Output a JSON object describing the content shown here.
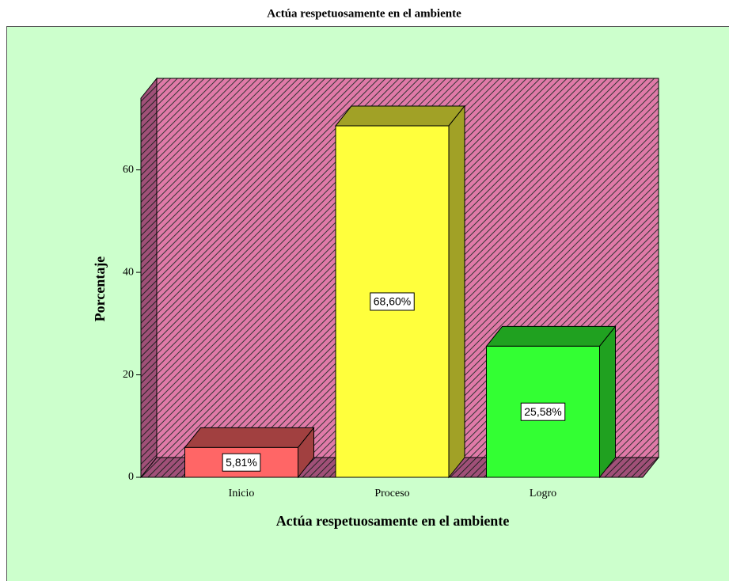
{
  "chart_data": {
    "type": "bar3d",
    "title": "Actúa respetuosamente en el ambiente",
    "x_label": "Actúa respetuosamente en el ambiente",
    "y_label": "Porcentaje",
    "categories": [
      "Inicio",
      "Proceso",
      "Logro"
    ],
    "values": [
      5.81,
      68.6,
      25.58
    ],
    "value_labels": [
      "5,81%",
      "68,60%",
      "25,58%"
    ],
    "colors": [
      "#ff6666",
      "#ffff3c",
      "#33ff33"
    ],
    "ylim": [
      0,
      74
    ],
    "yticks": [
      0,
      20,
      40,
      60
    ]
  }
}
